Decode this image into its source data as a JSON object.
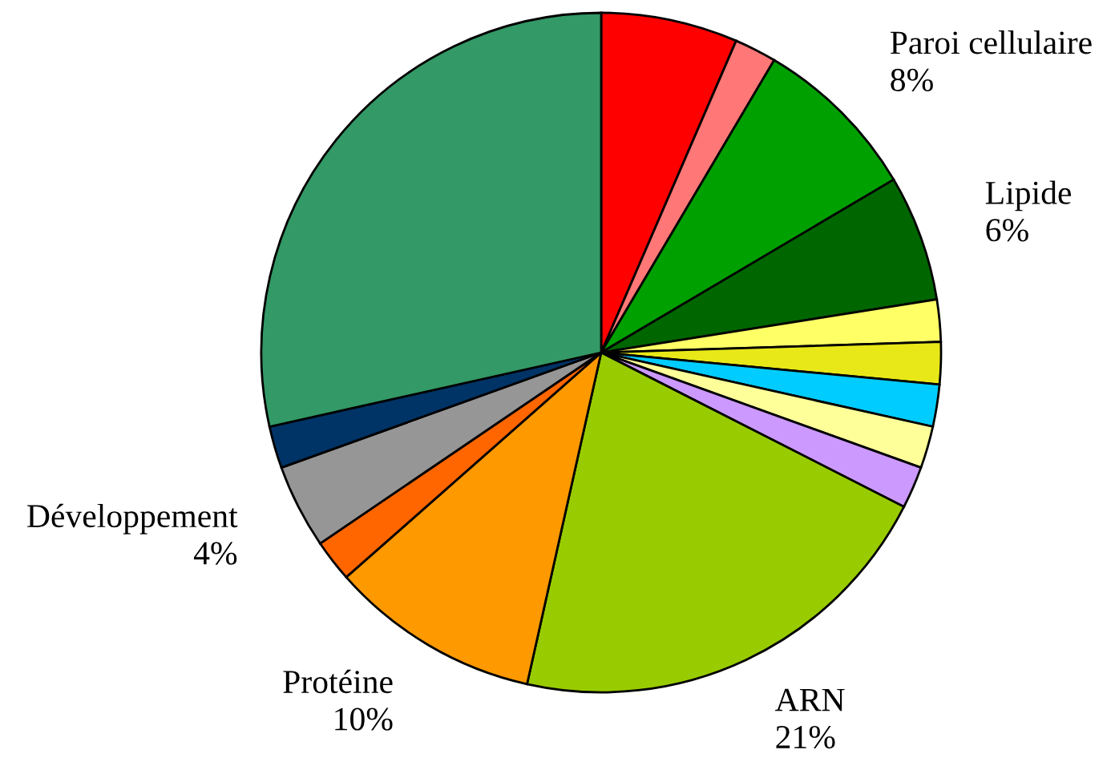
{
  "chart_data": {
    "type": "pie",
    "categories": [
      null,
      null,
      "Paroi cellulaire",
      "Lipide",
      null,
      null,
      null,
      null,
      null,
      "ARN",
      "Protéine",
      null,
      "Développement",
      null,
      null
    ],
    "values": [
      6.5,
      2,
      8,
      6,
      2,
      2,
      2,
      2,
      2,
      21,
      10,
      2,
      4,
      2,
      28.5
    ],
    "value_labels": [
      null,
      null,
      "8%",
      "6%",
      null,
      null,
      null,
      null,
      null,
      "21%",
      "10%",
      null,
      "4%",
      null,
      null
    ],
    "colors": [
      "#ff0000",
      "#ff7777",
      "#00a000",
      "#006600",
      "#ffff66",
      "#e8e818",
      "#00ccff",
      "#ffff99",
      "#cc99ff",
      "#99cc00",
      "#ff9900",
      "#ff6600",
      "#969696",
      "#003366",
      "#339966"
    ]
  }
}
